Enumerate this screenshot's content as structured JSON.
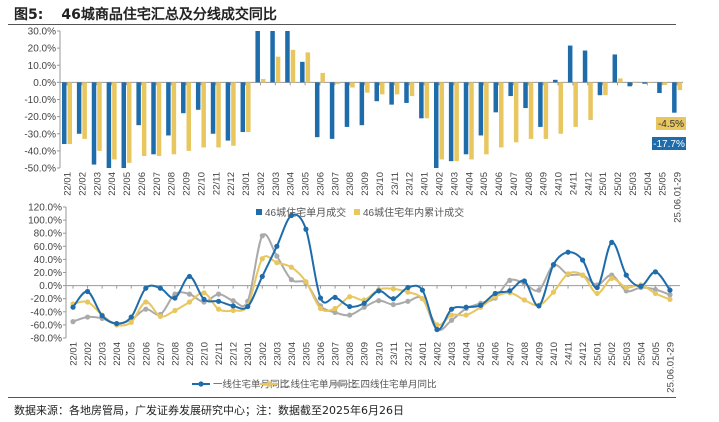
{
  "title": {
    "number": "图5:",
    "text": "46城商品住宅汇总及分线成交同比"
  },
  "footer": "数据来源：各地房管局，广发证券发展研究中心；注：数据截至2025年6月26日",
  "colors": {
    "blue": "#1F6CAB",
    "yellow": "#E8C660",
    "gray": "#AAAAAA"
  },
  "chart_data": [
    {
      "type": "bar",
      "categories": [
        "22/01",
        "22/02",
        "22/03",
        "22/04",
        "22/05",
        "22/06",
        "22/07",
        "22/08",
        "22/09",
        "22/10",
        "22/11",
        "22/12",
        "23/01",
        "23/02",
        "23/03",
        "23/04",
        "23/05",
        "23/06",
        "23/07",
        "23/08",
        "23/09",
        "23/10",
        "23/11",
        "23/12",
        "24/01",
        "24/02",
        "24/03",
        "24/04",
        "24/05",
        "24/06",
        "24/07",
        "24/08",
        "24/09",
        "24/10",
        "24/11",
        "24/12",
        "25/01",
        "25/02",
        "25/03",
        "25/04",
        "25/05",
        "25.06.01-29"
      ],
      "series": [
        {
          "name": "46城住宅单月成交",
          "color": "#1F6CAB",
          "values": [
            -36,
            -30,
            -48,
            -50,
            -50,
            -25,
            -42,
            -31,
            -18,
            -16,
            -30,
            -34,
            -29,
            30,
            30,
            30,
            12,
            -32,
            -33,
            -26,
            -25,
            -11,
            -13,
            -12,
            -21,
            -50,
            -46,
            -42,
            -31,
            -17.5,
            -8,
            -15,
            -26,
            1.5,
            21.5,
            18.6,
            -7.5,
            16.3,
            -2.3,
            -0.8,
            -6.2,
            -17.7
          ]
        },
        {
          "name": "46城住宅年内累计成交",
          "color": "#E8C660",
          "values": [
            -36,
            -33,
            -40,
            -45,
            -47,
            -43,
            -43,
            -42,
            -40,
            -38,
            -38,
            -37,
            -29,
            2,
            15,
            19,
            17.5,
            5.5,
            -1,
            -3,
            -6,
            -7,
            -7,
            -8,
            -21,
            -45,
            -46,
            -45,
            -42,
            -38,
            -35,
            -33,
            -33,
            -30,
            -26,
            -22,
            -7.5,
            2.3,
            0.4,
            -0.2,
            -1.5,
            -4.5
          ]
        }
      ],
      "yticks": [
        "30.0%",
        "20.0%",
        "10.0%",
        "0.0%",
        "-10.0%",
        "-20.0%",
        "-30.0%",
        "-40.0%",
        "-50.0%"
      ],
      "ylim": [
        -50,
        30
      ],
      "annotations": [
        {
          "text": "-4.5%",
          "series": 1
        },
        {
          "text": "-17.7%",
          "series": 0
        }
      ],
      "legend": "top-center"
    },
    {
      "type": "line",
      "categories": [
        "22/01",
        "22/02",
        "22/03",
        "22/04",
        "22/05",
        "22/06",
        "22/07",
        "22/08",
        "22/09",
        "22/10",
        "22/11",
        "22/12",
        "23/01",
        "23/02",
        "23/03",
        "23/04",
        "23/05",
        "23/06",
        "23/07",
        "23/08",
        "23/09",
        "23/10",
        "23/11",
        "23/12",
        "24/01",
        "24/02",
        "24/03",
        "24/04",
        "24/05",
        "24/06",
        "24/07",
        "24/08",
        "24/09",
        "24/10",
        "24/11",
        "24/12",
        "25/01",
        "25/02",
        "25/03",
        "25/04",
        "25/05",
        "25.06.01-29"
      ],
      "series": [
        {
          "name": "一线住宅单月同比",
          "color": "#1F6CAB",
          "values": [
            -33,
            -9,
            -46,
            -58,
            -48,
            -4,
            -4,
            -19,
            14,
            -21,
            -24,
            -31,
            -32,
            14,
            60,
            107,
            86,
            -19,
            -18,
            -32,
            -27,
            -8,
            -20,
            -3,
            -7,
            -67,
            -36,
            -33,
            -30,
            -12,
            -8,
            7,
            -31,
            32,
            51,
            39,
            -3,
            66,
            16,
            -1,
            21,
            -7
          ]
        },
        {
          "name": "二线住宅单月同比",
          "color": "#E8C660",
          "values": [
            -28,
            -25,
            -45,
            -60,
            -56,
            -25,
            -47,
            -38,
            -25,
            -11,
            -36,
            -38,
            -30,
            41,
            35,
            28,
            6,
            -35,
            -35,
            -17,
            -22,
            -6,
            -5,
            -10,
            -20,
            -60,
            -45,
            -45,
            -33,
            -17,
            -11,
            -22,
            -30,
            -10,
            18,
            16,
            -12,
            11,
            -3,
            1,
            -12,
            -21
          ]
        },
        {
          "name": "三四线住宅单月同比",
          "color": "#AAAAAA",
          "values": [
            -55,
            -48,
            -50,
            -58,
            -52,
            -36,
            -44,
            -13,
            -13,
            -25,
            -13,
            -23,
            -24,
            76,
            45,
            9,
            4,
            -31,
            -41,
            -45,
            -33,
            -23,
            -29,
            -24,
            -20,
            -67,
            -53,
            -35,
            -27,
            -19,
            8,
            3,
            -7,
            31,
            17,
            16,
            1,
            16,
            -8,
            -3,
            -6,
            -14
          ]
        }
      ],
      "yticks": [
        "120.0%",
        "100.0%",
        "80.0%",
        "60.0%",
        "40.0%",
        "20.0%",
        "0.0%",
        "-20.0%",
        "-40.0%",
        "-60.0%",
        "-80.0%"
      ],
      "ylim": [
        -80,
        120
      ],
      "legend": "bottom-center"
    }
  ]
}
